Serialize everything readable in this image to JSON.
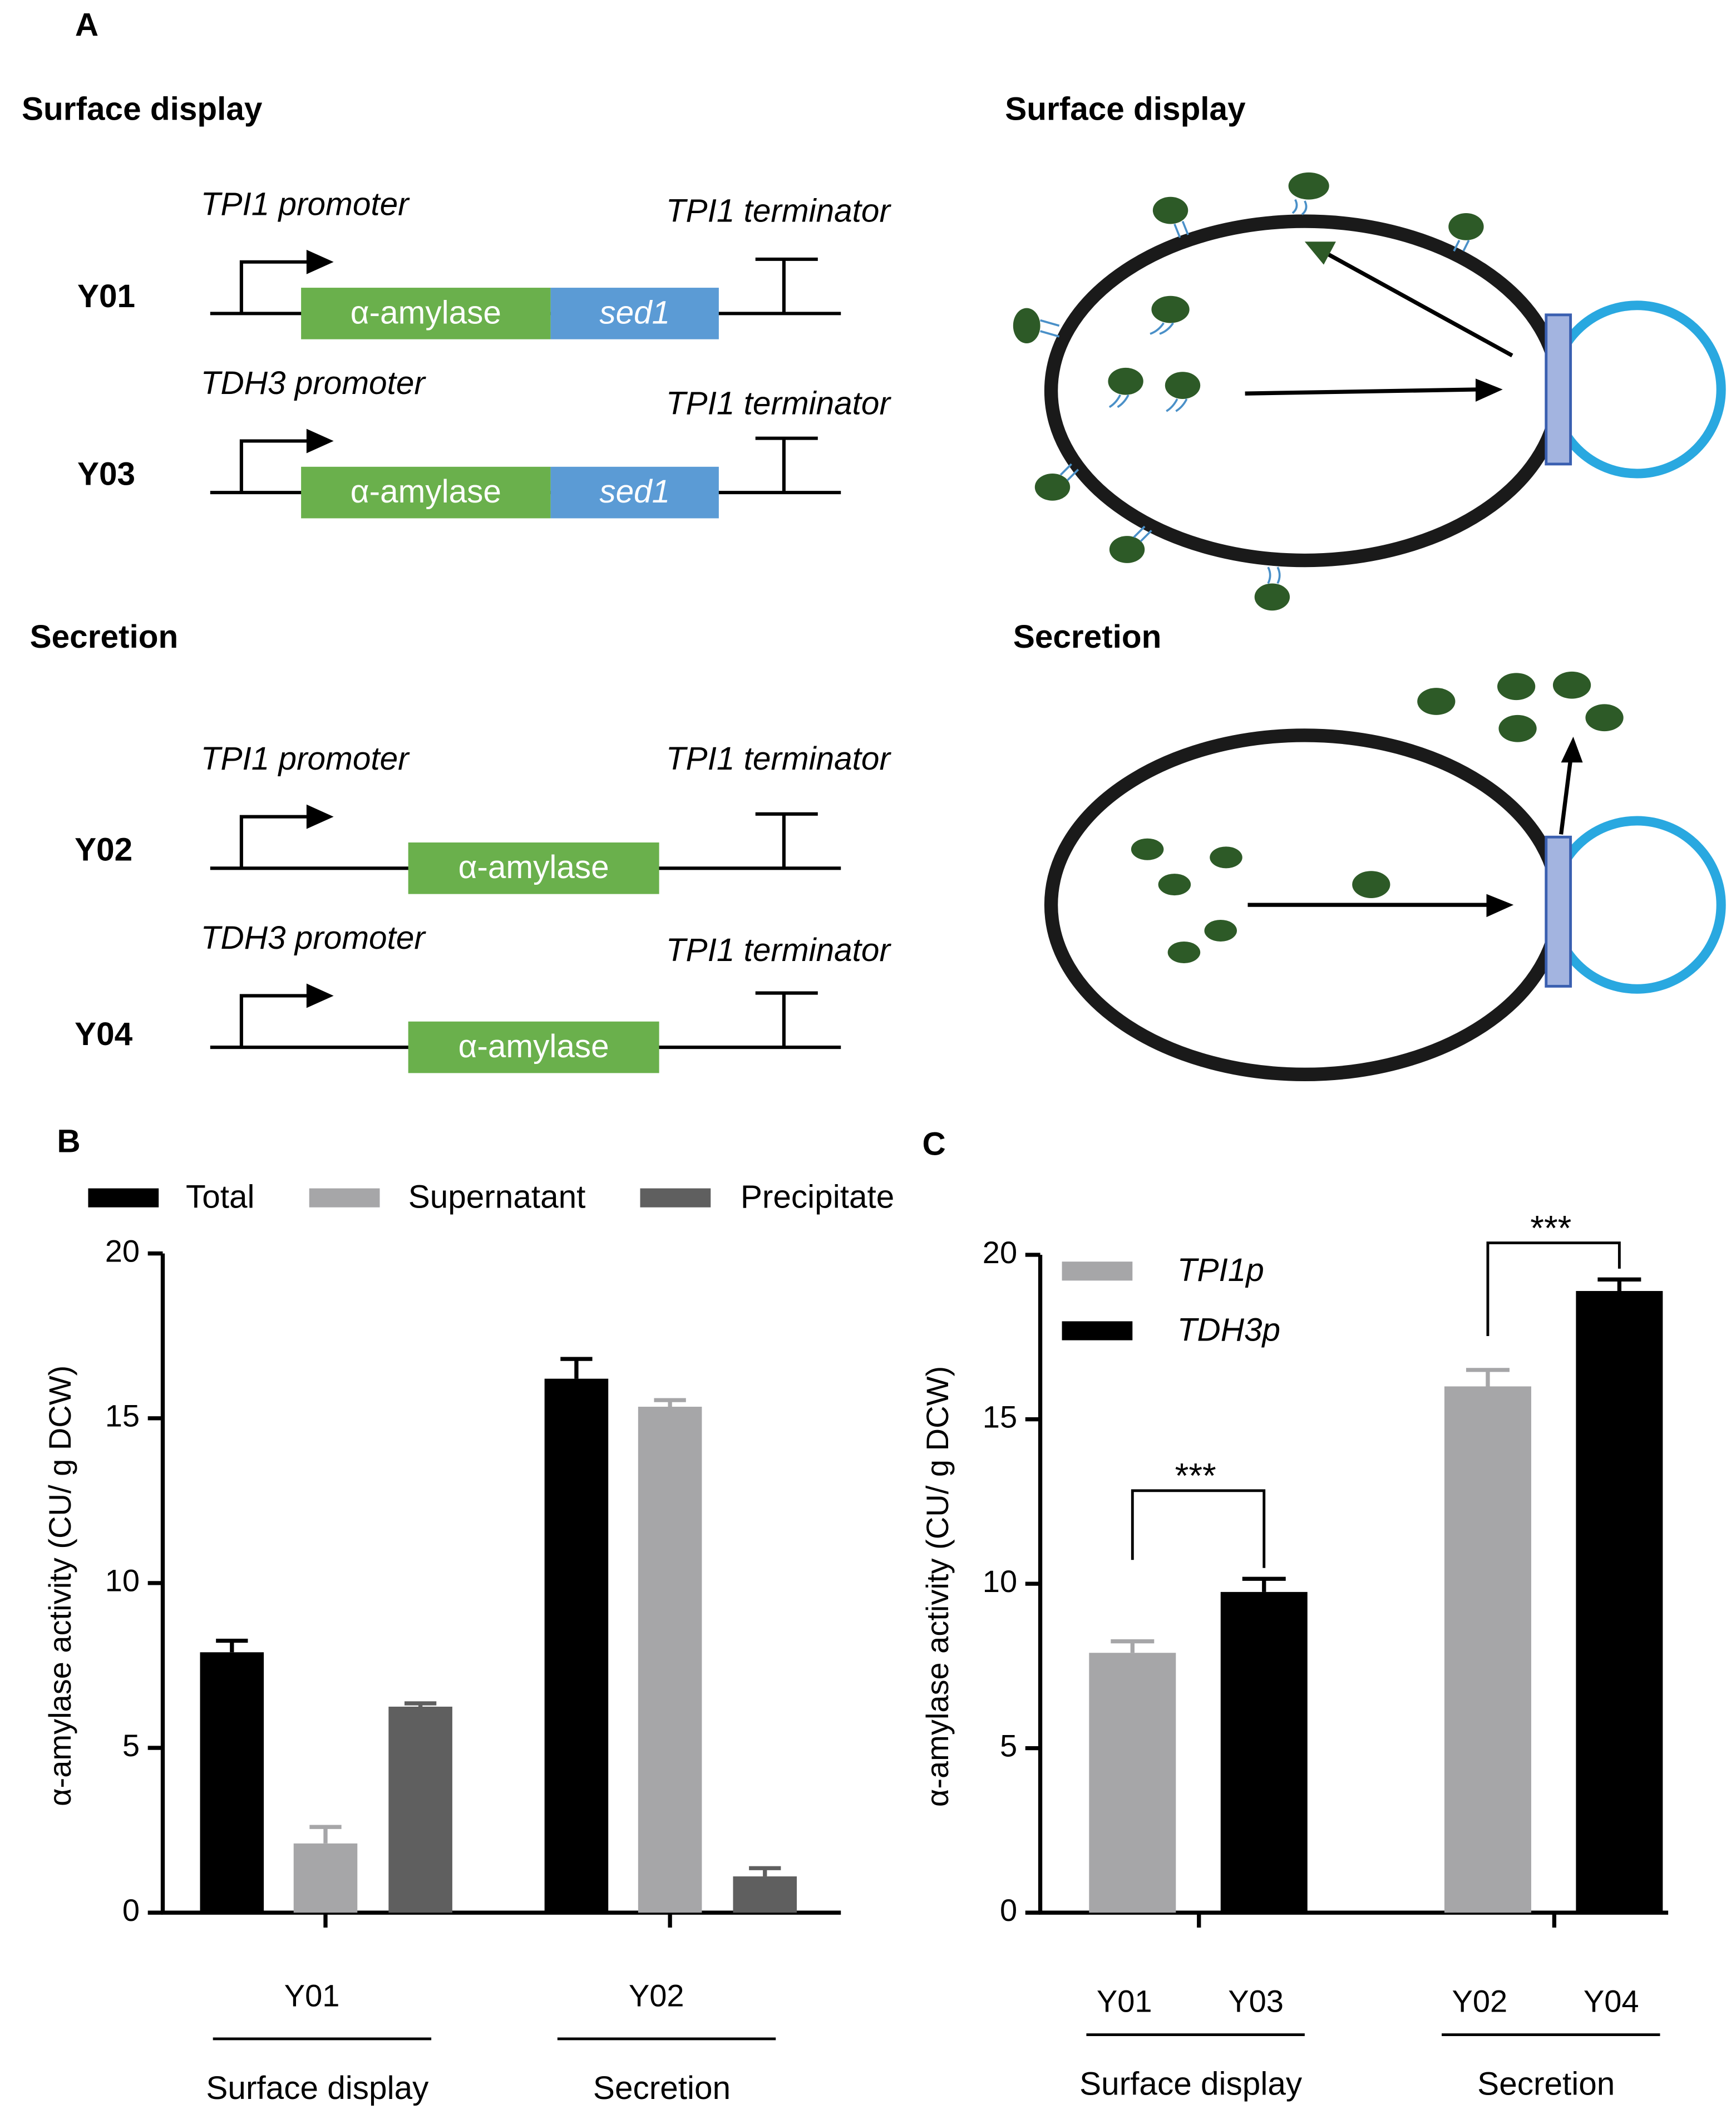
{
  "panel_labels": [
    "A",
    "B",
    "C"
  ],
  "panel_a": {
    "left_titles": [
      "Surface display",
      "Secretion"
    ],
    "right_titles": [
      "Surface display",
      "Secretion"
    ],
    "constructs": [
      {
        "strain": "Y01",
        "promoter": "TPI1 promoter",
        "terminator": "TPI1 terminator",
        "genes": [
          "α-amylase",
          "sed1"
        ]
      },
      {
        "strain": "Y03",
        "promoter": "TDH3 promoter",
        "terminator": "TPI1 terminator",
        "genes": [
          "α-amylase",
          "sed1"
        ]
      },
      {
        "strain": "Y02",
        "promoter": "TPI1 promoter",
        "terminator": "TPI1 terminator",
        "genes": [
          "α-amylase"
        ]
      },
      {
        "strain": "Y04",
        "promoter": "TDH3 promoter",
        "terminator": "TPI1 terminator",
        "genes": [
          "α-amylase"
        ]
      }
    ]
  },
  "chart_data": [
    {
      "type": "bar",
      "ylabel": "α-amylase activity (CU/ g DCW)",
      "categories": [
        "Y01",
        "Y02"
      ],
      "groups": [
        "Surface display",
        "Secretion"
      ],
      "series": [
        {
          "name": "Total",
          "color": "#000000",
          "values": [
            7.9,
            16.2
          ],
          "errors": [
            0.35,
            0.6
          ]
        },
        {
          "name": "Supernatant",
          "color": "#a6a6a8",
          "values": [
            2.1,
            15.35
          ],
          "errors": [
            0.5,
            0.2
          ]
        },
        {
          "name": "Precipitate",
          "color": "#5f5f5f",
          "values": [
            6.25,
            1.1
          ],
          "errors": [
            0.1,
            0.25
          ]
        }
      ],
      "ylim": [
        0,
        20
      ],
      "yticks": [
        0,
        5,
        10,
        15,
        20
      ],
      "legend": "top"
    },
    {
      "type": "bar",
      "ylabel": "α-amylase activity (CU/ g DCW)",
      "groups": [
        "Surface display",
        "Secretion"
      ],
      "bar_labels": [
        [
          "Y01",
          "Y03"
        ],
        [
          "Y02",
          "Y04"
        ]
      ],
      "series": [
        {
          "name": "TPI1p",
          "color": "#a6a6a8",
          "values": [
            7.9,
            16.0
          ],
          "errors": [
            0.35,
            0.5
          ]
        },
        {
          "name": "TDH3p",
          "color": "#000000",
          "values": [
            9.75,
            18.9
          ],
          "errors": [
            0.4,
            0.35
          ]
        }
      ],
      "significance": [
        "***",
        "***"
      ],
      "ylim": [
        0,
        20
      ],
      "yticks": [
        0,
        5,
        10,
        15,
        20
      ],
      "legend": "upper left"
    }
  ]
}
